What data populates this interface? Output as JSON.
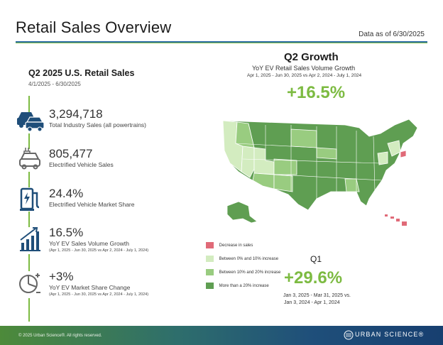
{
  "header": {
    "title": "Retail Sales Overview",
    "as_of": "Data as of 6/30/2025"
  },
  "left": {
    "title": "Q2 2025 U.S. Retail Sales",
    "range": "4/1/2025 - 6/30/2025",
    "stats": [
      {
        "icon": "cars-icon",
        "value": "3,294,718",
        "label": "Total Industry Sales (all powertrains)",
        "sub": ""
      },
      {
        "icon": "plug-car-icon",
        "value": "805,477",
        "label": "Electrified Vehicle Sales",
        "sub": ""
      },
      {
        "icon": "charging-station-icon",
        "value": "24.4%",
        "label": "Electrified Vehicle Market Share",
        "sub": ""
      },
      {
        "icon": "growth-bars-icon",
        "value": "16.5%",
        "label": "YoY EV Sales Volume Growth",
        "sub": "(Apr 1, 2025 - Jun 30, 2025 vs Apr 2, 2024 - July 1, 2024)"
      },
      {
        "icon": "pie-change-icon",
        "value": "+3%",
        "label": "YoY EV Market Share Change",
        "sub": "(Apr 1, 2025 - Jun 30, 2025 vs Apr 2, 2024 - July 1, 2024)"
      }
    ]
  },
  "q2": {
    "title": "Q2 Growth",
    "subtitle": "YoY EV Retail Sales Volume Growth",
    "range": "Apr 1, 2025 - Jun 30, 2025 vs Apr 2, 2024 - July 1, 2024",
    "value": "+16.5%"
  },
  "legend": [
    {
      "label": "Decrease in sales",
      "color": "#e06a78"
    },
    {
      "label": "Between 0% and 10% increase",
      "color": "#d3ecc0"
    },
    {
      "label": "Between 10% and 20% increase",
      "color": "#99cc80"
    },
    {
      "label": "More than a 20% increase",
      "color": "#5f9e52"
    }
  ],
  "q1": {
    "title": "Q1",
    "value": "+29.6%",
    "range_line1": "Jan 3, 2025 - Mar 31, 2025 vs.",
    "range_line2": "Jan 3, 2024 - Apr 1, 2024"
  },
  "footer": {
    "copyright": "© 2025 Urban Science®. All rights reserved.",
    "brand": "URBAN SCIENCE®"
  },
  "colors": {
    "accent_green": "#7dbb42",
    "rule_blue": "#2f6fa3",
    "icon_blue": "#1f4e79"
  }
}
